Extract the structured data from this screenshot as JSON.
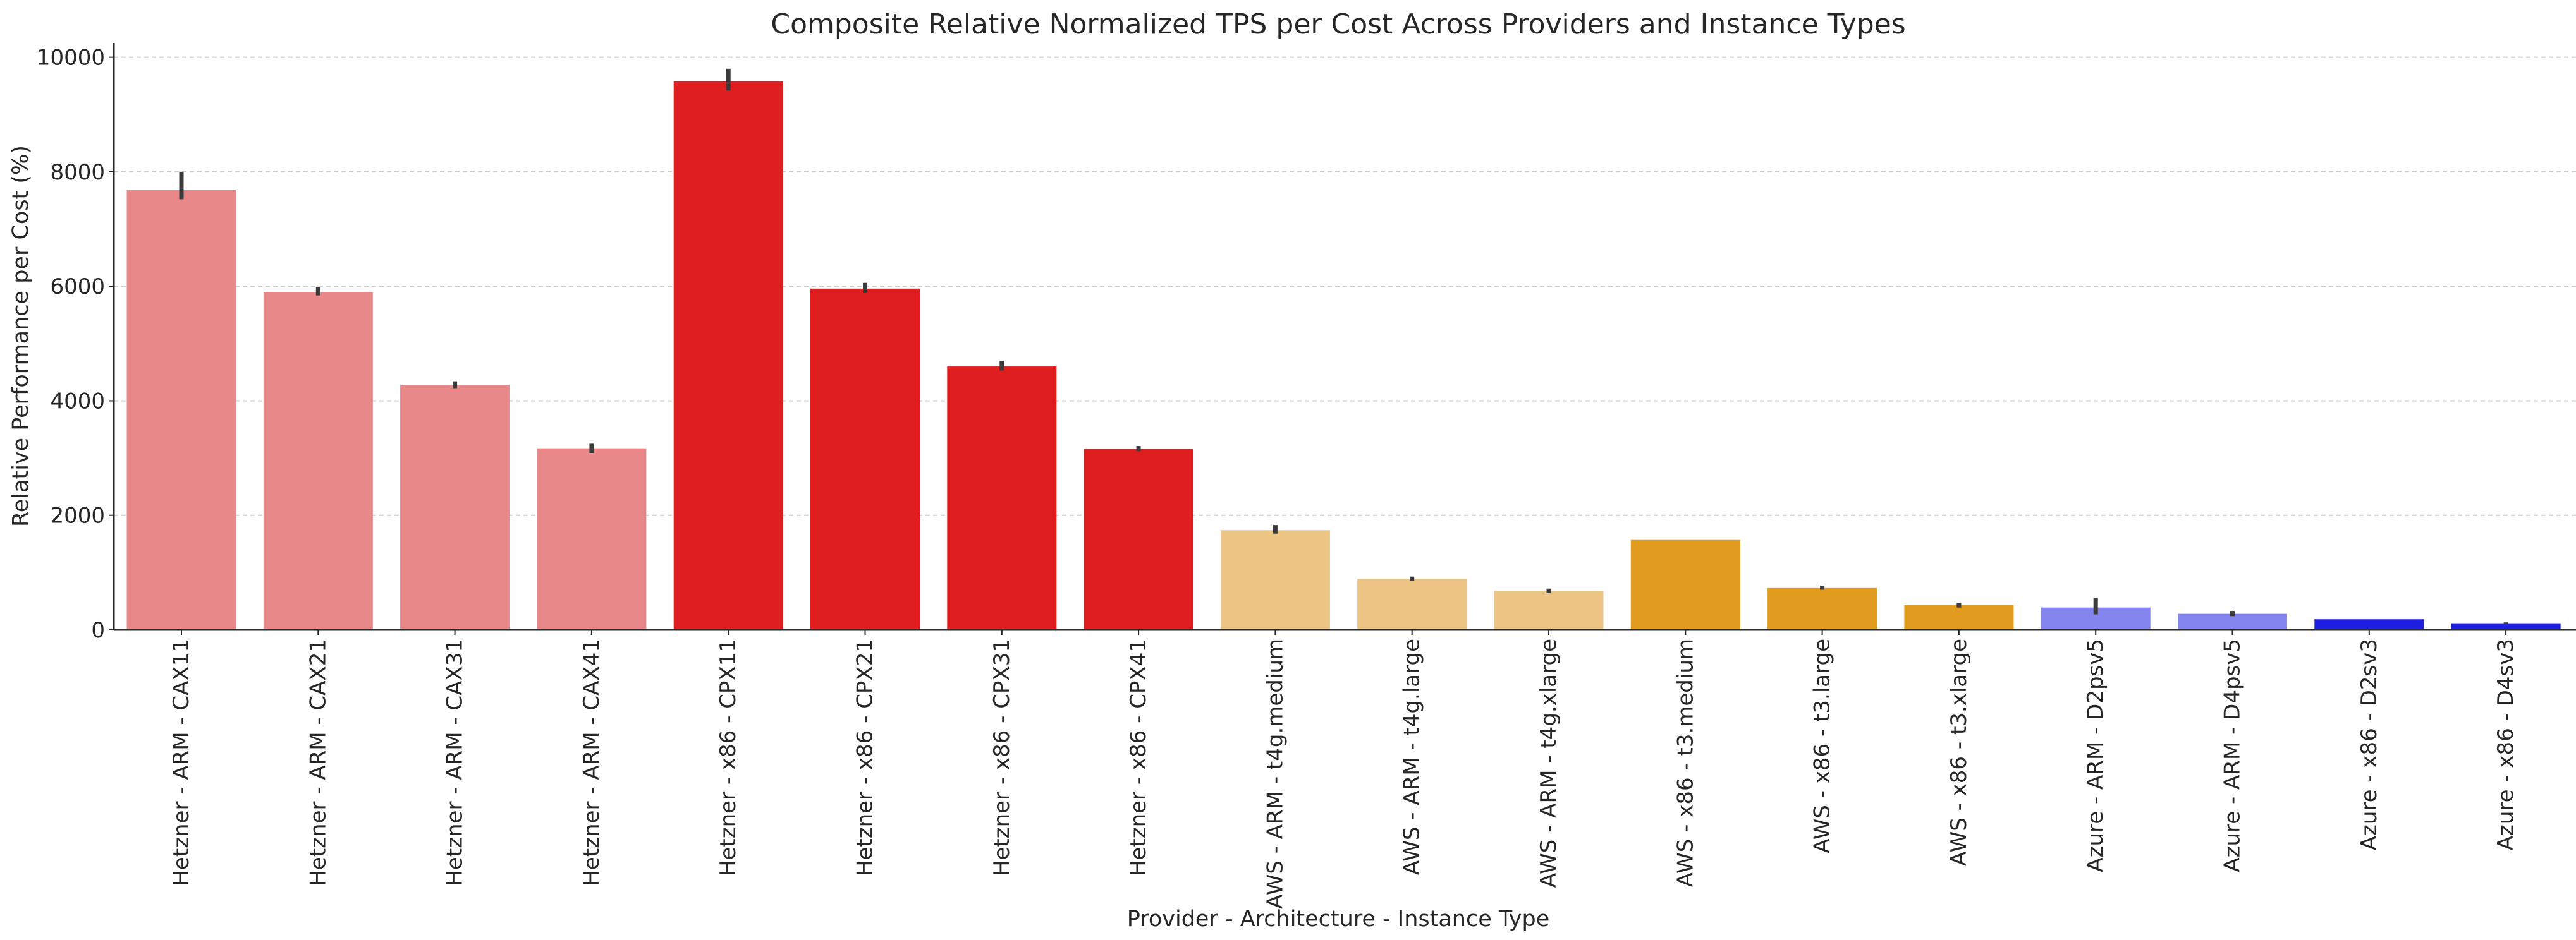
{
  "chart_data": {
    "type": "bar",
    "title": "Composite Relative Normalized TPS per Cost Across Providers and Instance Types",
    "xlabel": "Provider - Architecture - Instance Type",
    "ylabel": "Relative Performance per Cost (%)",
    "ylim": [
      0,
      10250
    ],
    "yticks": [
      0,
      2000,
      4000,
      6000,
      8000,
      10000
    ],
    "ytick_labels": [
      "0",
      "2000",
      "4000",
      "6000",
      "8000",
      "10000"
    ],
    "grid": "y-dashed",
    "categories": [
      "Hetzner - ARM - CAX11",
      "Hetzner - ARM - CAX21",
      "Hetzner - ARM - CAX31",
      "Hetzner - ARM - CAX41",
      "Hetzner - x86 - CPX11",
      "Hetzner - x86 - CPX21",
      "Hetzner - x86 - CPX31",
      "Hetzner - x86 - CPX41",
      "AWS - ARM - t4g.medium",
      "AWS - ARM - t4g.large",
      "AWS - ARM - t4g.xlarge",
      "AWS - x86 - t3.medium",
      "AWS - x86 - t3.large",
      "AWS - x86 - t3.xlarge",
      "Azure - ARM - D2psv5",
      "Azure - ARM - D4psv5",
      "Azure - x86 - D2sv3",
      "Azure - x86 - D4sv3"
    ],
    "values": [
      7680,
      5900,
      4280,
      3170,
      9580,
      5960,
      4600,
      3160,
      1740,
      890,
      680,
      1570,
      730,
      430,
      390,
      280,
      185,
      115
    ],
    "error_low": [
      7520,
      5840,
      4220,
      3090,
      9420,
      5880,
      4530,
      3120,
      1680,
      860,
      640,
      1570,
      700,
      390,
      270,
      240,
      185,
      100
    ],
    "error_high": [
      8000,
      5980,
      4340,
      3250,
      9800,
      6060,
      4700,
      3210,
      1830,
      930,
      720,
      1570,
      770,
      470,
      560,
      330,
      185,
      130
    ],
    "colors": [
      "#e88888",
      "#e88888",
      "#e88888",
      "#e88888",
      "#df1f1f",
      "#df1f1f",
      "#df1f1f",
      "#df1f1f",
      "#ecc585",
      "#ecc585",
      "#ecc585",
      "#e19b1f",
      "#e19b1f",
      "#e19b1f",
      "#8585f0",
      "#8585f0",
      "#1f1fdf",
      "#1f1fdf"
    ]
  }
}
